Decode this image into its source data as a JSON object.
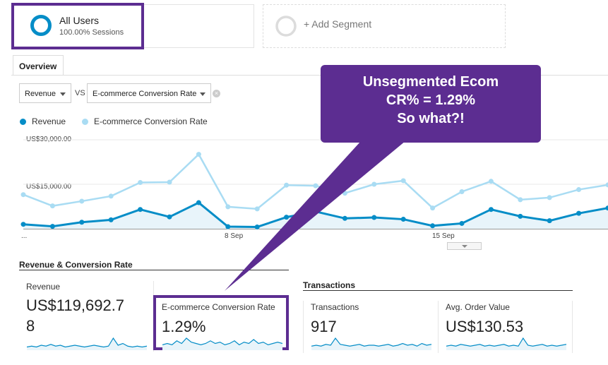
{
  "segments": {
    "all_users": {
      "title": "All Users",
      "subtitle": "100.00% Sessions"
    },
    "add_segment": "+ Add Segment"
  },
  "tabs": {
    "overview": "Overview"
  },
  "controls": {
    "metric1": "Revenue",
    "vs_label": "VS",
    "metric2": "E-commerce Conversion Rate",
    "clear_symbol": "×"
  },
  "legend": [
    {
      "name": "Revenue",
      "color": "#058dc7"
    },
    {
      "name": "E-commerce Conversion Rate",
      "color": "#a9dcf3"
    }
  ],
  "chart_data": {
    "type": "line",
    "y_ticks": [
      "US$30,000.00",
      "US$15,000.00"
    ],
    "x_ticks": [
      "...",
      "8 Sep",
      "15 Sep"
    ],
    "series": [
      {
        "name": "Revenue",
        "color": "#058dc7",
        "values": [
          1500,
          800,
          2200,
          3000,
          6500,
          4000,
          8800,
          700,
          600,
          3900,
          5800,
          3500,
          3800,
          3200,
          1000,
          1800,
          6500,
          4200,
          2700,
          5200,
          7000
        ]
      },
      {
        "name": "E-commerce Conversion Rate",
        "color": "#a9dcf3",
        "values": [
          11500,
          7700,
          9300,
          11000,
          15600,
          15700,
          25100,
          7400,
          6700,
          14700,
          14500,
          12000,
          15000,
          16200,
          7000,
          12500,
          16000,
          9800,
          10500,
          13200,
          14800
        ]
      }
    ]
  },
  "sections": {
    "revenue_conversion": "Revenue & Conversion Rate",
    "transactions": "Transactions"
  },
  "metrics": [
    {
      "label": "Revenue",
      "value_line1": "US$119,692.7",
      "value_line2": "8",
      "spark": [
        2,
        3,
        2,
        4,
        3,
        5,
        3,
        4,
        2,
        3,
        4,
        3,
        2,
        3,
        4,
        3,
        2,
        3,
        12,
        4,
        6,
        3,
        2,
        3,
        2,
        3
      ]
    },
    {
      "label": "E-commerce Conversion Rate",
      "value_line1": "1.29%",
      "spark": [
        3,
        4,
        3,
        6,
        4,
        8,
        5,
        4,
        3,
        4,
        6,
        4,
        5,
        3,
        4,
        6,
        3,
        5,
        4,
        7,
        4,
        5,
        3,
        4,
        5,
        4
      ]
    },
    {
      "label": "Transactions",
      "value_line1": "917",
      "spark": [
        3,
        4,
        3,
        5,
        4,
        12,
        5,
        4,
        3,
        4,
        5,
        3,
        4,
        4,
        3,
        4,
        5,
        3,
        4,
        6,
        4,
        5,
        3,
        6,
        4,
        5
      ]
    },
    {
      "label": "Avg. Order Value",
      "value_line1": "US$130.53",
      "spark": [
        3,
        4,
        3,
        5,
        4,
        3,
        4,
        5,
        3,
        4,
        3,
        4,
        5,
        3,
        4,
        3,
        12,
        4,
        3,
        4,
        5,
        3,
        4,
        3,
        4,
        5
      ]
    }
  ],
  "callout": {
    "line1": "Unsegmented Ecom",
    "line2": "CR% = 1.29%",
    "line3": "So what?!"
  }
}
